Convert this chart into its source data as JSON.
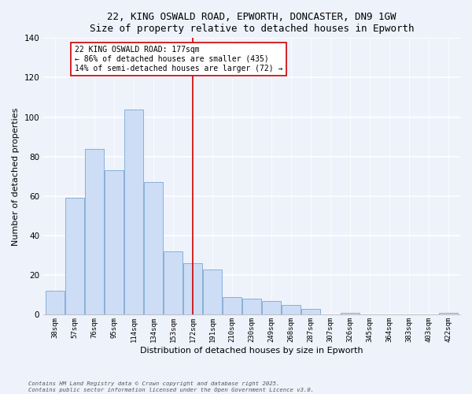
{
  "title": "22, KING OSWALD ROAD, EPWORTH, DONCASTER, DN9 1GW",
  "subtitle": "Size of property relative to detached houses in Epworth",
  "xlabel": "Distribution of detached houses by size in Epworth",
  "ylabel": "Number of detached properties",
  "bar_color": "#ccddf5",
  "bar_edge_color": "#8ab0d8",
  "background_color": "#eef2fb",
  "categories": [
    "38sqm",
    "57sqm",
    "76sqm",
    "95sqm",
    "114sqm",
    "134sqm",
    "153sqm",
    "172sqm",
    "191sqm",
    "210sqm",
    "230sqm",
    "249sqm",
    "268sqm",
    "287sqm",
    "307sqm",
    "326sqm",
    "345sqm",
    "364sqm",
    "383sqm",
    "403sqm",
    "422sqm"
  ],
  "values": [
    12,
    59,
    84,
    73,
    104,
    67,
    32,
    26,
    23,
    9,
    8,
    7,
    5,
    3,
    0,
    1,
    0,
    0,
    0,
    0,
    1
  ],
  "vline_x_idx": 7,
  "vline_color": "#cc0000",
  "annotation_title": "22 KING OSWALD ROAD: 177sqm",
  "annotation_line1": "← 86% of detached houses are smaller (435)",
  "annotation_line2": "14% of semi-detached houses are larger (72) →",
  "annotation_box_color": "#ffffff",
  "annotation_box_edge": "#cc0000",
  "footer1": "Contains HM Land Registry data © Crown copyright and database right 2025.",
  "footer2": "Contains public sector information licensed under the Open Government Licence v3.0.",
  "ylim": [
    0,
    140
  ],
  "yticks": [
    0,
    20,
    40,
    60,
    80,
    100,
    120,
    140
  ]
}
